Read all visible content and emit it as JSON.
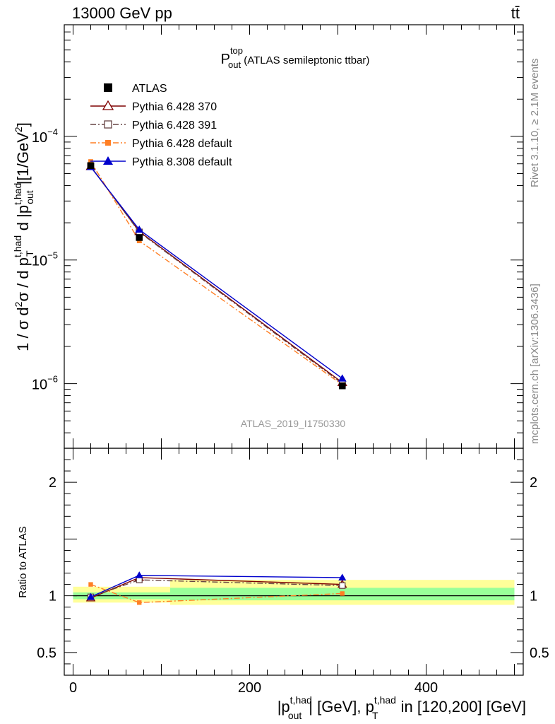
{
  "header": {
    "left": "13000 GeV pp",
    "right": "tt̄"
  },
  "side_labels": {
    "rivet": "Rivet 3.1.10, ≥ 2.1M events",
    "mcplots": "mcplots.cern.ch [arXiv:1306.3436]"
  },
  "watermark": "ATLAS_2019_I1750330",
  "colors": {
    "atlas": "#000000",
    "py6_370": "#7f0000",
    "py6_391": "#664444",
    "py6_default": "#ff7f24",
    "py8_default": "#0000cc",
    "band_inner": "#99ff99",
    "band_outer": "#ffff99"
  },
  "chart_data": [
    {
      "type": "line",
      "panel": "main",
      "title": "P_out^top (ATLAS semileptonic ttbar)",
      "title_main": "P",
      "title_sup": "top",
      "title_sub": "out",
      "title_rest": " (ATLAS semileptonic ttbar)",
      "ylabel": "1 / σ d²σ / d p_T^t,had d |p_out^t,had| [1/GeV²]",
      "yscale": "log",
      "xlim": [
        -10,
        510
      ],
      "ylim": [
        3e-07,
        0.0008
      ],
      "y_ticks": [
        {
          "value": 1e-06,
          "label": "10",
          "exp": "−6"
        },
        {
          "value": 1e-05,
          "label": "10",
          "exp": "−5"
        },
        {
          "value": 0.0001,
          "label": "10",
          "exp": "−4"
        }
      ],
      "legend_position": "top-left",
      "x": [
        20,
        75,
        305
      ],
      "series": [
        {
          "name": "ATLAS",
          "marker": "square-filled",
          "values": [
            5.8e-05,
            1.52e-05,
            9.6e-07
          ]
        },
        {
          "name": "Pythia 6.428 370",
          "marker": "triangle-open",
          "line": "solid",
          "values": [
            5.7e-05,
            1.7e-05,
            1.02e-06
          ]
        },
        {
          "name": "Pythia 6.428 391",
          "marker": "square-open",
          "line": "dashdot",
          "values": [
            5.75e-05,
            1.68e-05,
            1e-06
          ]
        },
        {
          "name": "Pythia 6.428 default",
          "marker": "square-filled-small",
          "line": "dashdot",
          "values": [
            6.25e-05,
            1.43e-05,
            9.8e-07
          ]
        },
        {
          "name": "Pythia 8.308 default",
          "marker": "triangle-filled",
          "line": "solid",
          "values": [
            5.65e-05,
            1.76e-05,
            1.1e-06
          ]
        }
      ]
    },
    {
      "type": "line",
      "panel": "ratio",
      "ylabel": "Ratio to ATLAS",
      "xlabel": "|p_out^t,had| [GeV], p_T^t,had in [120,200] [GeV]",
      "xlim": [
        -10,
        510
      ],
      "ylim": [
        0.3,
        2.3
      ],
      "x_ticks": [
        0,
        200,
        400
      ],
      "y_ticks": [
        0.5,
        1,
        2
      ],
      "reference_line": 1,
      "x": [
        20,
        75,
        305
      ],
      "bands": [
        {
          "x_from": 0,
          "x_to": 110,
          "inner": [
            0.97,
            1.03
          ],
          "outer": [
            0.94,
            1.08
          ]
        },
        {
          "x_from": 110,
          "x_to": 500,
          "inner": [
            0.96,
            1.07
          ],
          "outer": [
            0.92,
            1.14
          ]
        }
      ],
      "series": [
        {
          "name": "Pythia 6.428 370",
          "values": [
            0.98,
            1.16,
            1.1
          ]
        },
        {
          "name": "Pythia 6.428 391",
          "values": [
            0.99,
            1.14,
            1.09
          ]
        },
        {
          "name": "Pythia 6.428 default",
          "values": [
            1.1,
            0.94,
            1.02
          ]
        },
        {
          "name": "Pythia 8.308 default",
          "values": [
            0.99,
            1.18,
            1.16
          ]
        }
      ]
    }
  ]
}
